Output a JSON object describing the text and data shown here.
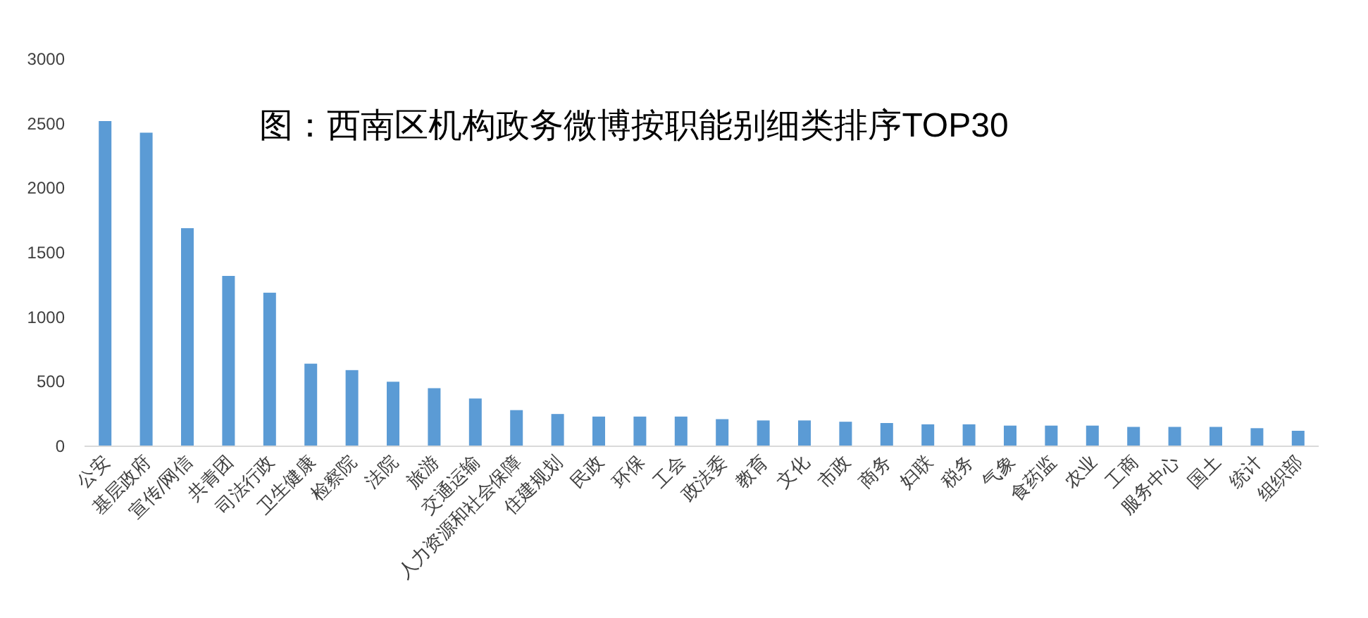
{
  "chart_data": {
    "type": "bar",
    "title": "图：西南区机构政务微博按职能别细类排序TOP30",
    "categories": [
      "公安",
      "基层政府",
      "宣传/网信",
      "共青团",
      "司法行政",
      "卫生健康",
      "检察院",
      "法院",
      "旅游",
      "交通运输",
      "人力资源和社会保障",
      "住建规划",
      "民政",
      "环保",
      "工会",
      "政法委",
      "教育",
      "文化",
      "市政",
      "商务",
      "妇联",
      "税务",
      "气象",
      "食药监",
      "农业",
      "工商",
      "服务中心",
      "国土",
      "统计",
      "组织部"
    ],
    "values": [
      2520,
      2430,
      1690,
      1320,
      1190,
      640,
      590,
      500,
      450,
      370,
      280,
      250,
      230,
      230,
      230,
      210,
      200,
      200,
      190,
      180,
      170,
      170,
      160,
      160,
      160,
      150,
      150,
      150,
      140,
      120
    ],
    "color": "#5b9bd5",
    "ylim": [
      0,
      3000
    ],
    "yticks": [
      0,
      500,
      1000,
      1500,
      2000,
      2500,
      3000
    ],
    "grid": false
  }
}
